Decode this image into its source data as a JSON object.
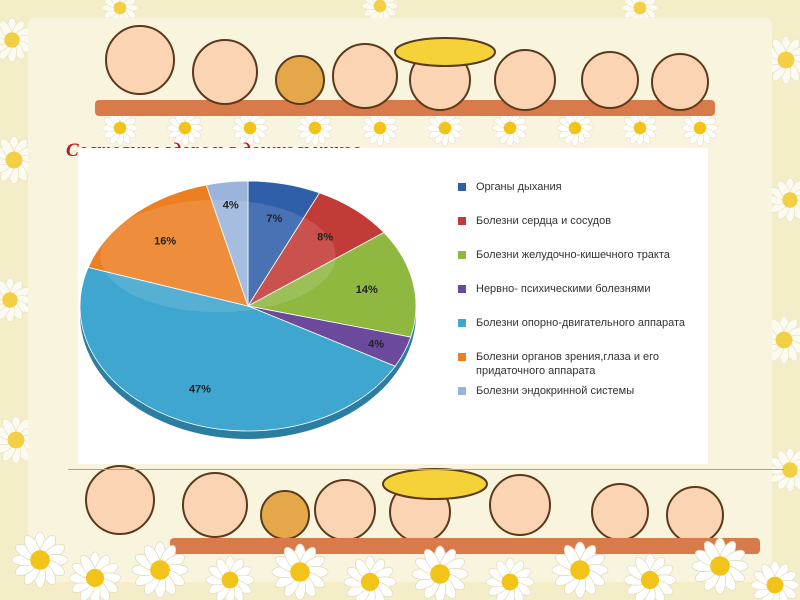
{
  "slide": {
    "title": "Состояние здоровья дошкольников"
  },
  "colors": {
    "title": "#c0141c",
    "background": "#f6f1cf"
  },
  "decorations": {
    "top_border": "cartoon-children-and-daisies",
    "bottom_border": "cartoon-children-and-daisies"
  },
  "chart_data": {
    "type": "pie",
    "legend_position": "right",
    "slices": [
      {
        "label": "Органы дыхания",
        "value": 7,
        "value_label": "7%",
        "color": "#2f5fa9"
      },
      {
        "label": "Болезни сердца и сосудов",
        "value": 8,
        "value_label": "8%",
        "color": "#c33b36"
      },
      {
        "label": "Болезни желудочно-кишечного тракта",
        "value": 14,
        "value_label": "14%",
        "color": "#8fb840"
      },
      {
        "label": "Нервно- психическими болезнями",
        "value": 4,
        "value_label": "4%",
        "color": "#6b4a9e"
      },
      {
        "label": "Болезни опорно-двигательного аппарата",
        "value": 47,
        "value_label": "47%",
        "color": "#3fa6cf"
      },
      {
        "label": "Болезни органов зрения,глаза и его придаточного аппарата",
        "value": 16,
        "value_label": "16%",
        "color": "#ec7f22"
      },
      {
        "label": "Болезни эндокринной системы",
        "value": 4,
        "value_label": "4%",
        "color": "#9bb4dc"
      }
    ]
  }
}
